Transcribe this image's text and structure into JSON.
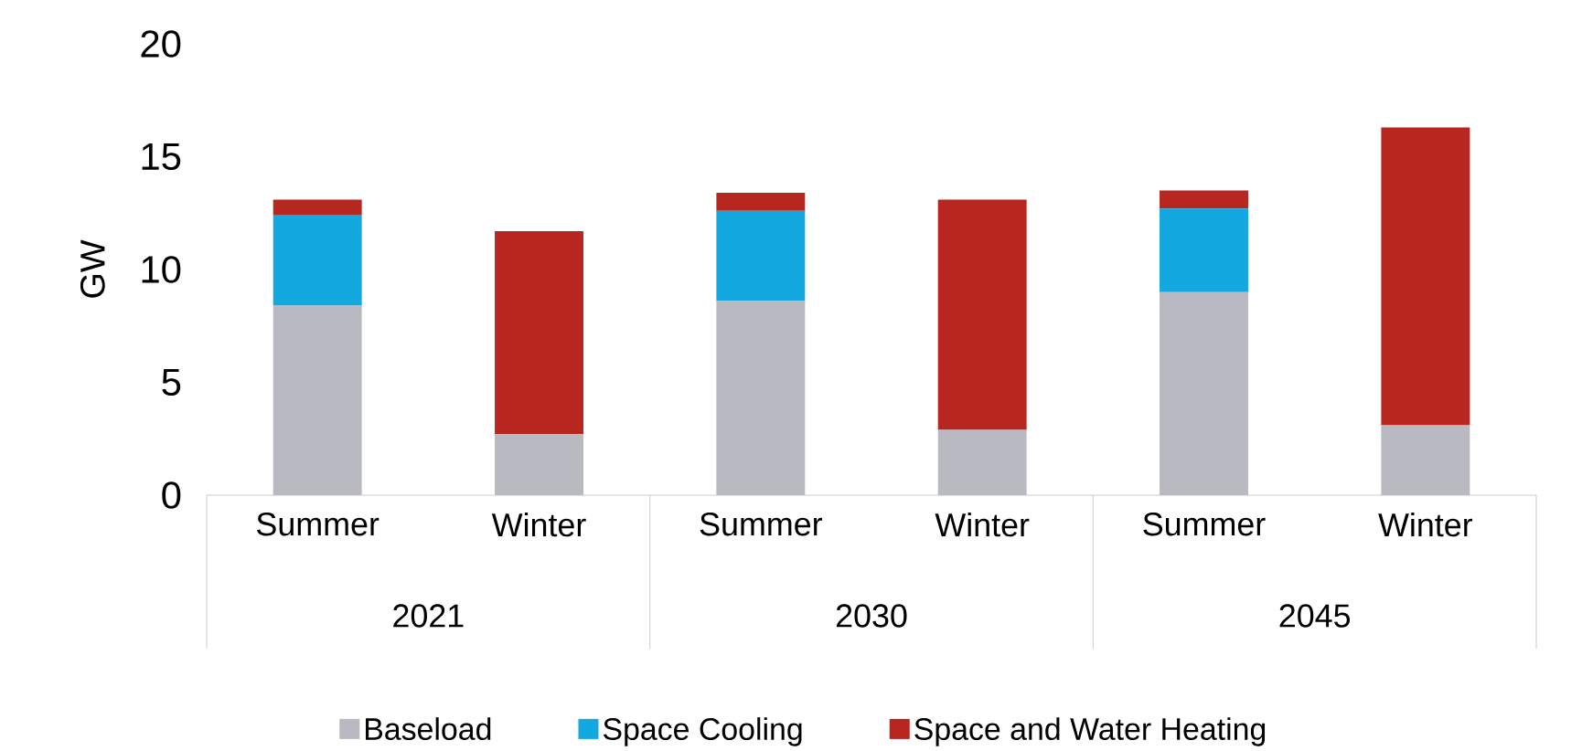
{
  "chart_data": {
    "type": "bar",
    "stacked": true,
    "ylabel": "GW",
    "categories": [
      "Summer",
      "Winter",
      "Summer",
      "Winter",
      "Summer",
      "Winter"
    ],
    "annotations": [
      "2021",
      "2030",
      "2045"
    ],
    "series": [
      {
        "name": "Baseload",
        "color": "#b9b9c1",
        "values": [
          8.4,
          2.7,
          8.6,
          2.9,
          9.0,
          3.1
        ]
      },
      {
        "name": "Space Cooling",
        "color": "#13a8e0",
        "values": [
          4.0,
          0,
          4.0,
          0,
          3.7,
          0
        ]
      },
      {
        "name": "Space and Water Heating",
        "color": "#b8271f",
        "values": [
          0.7,
          9.0,
          0.8,
          10.2,
          0.8,
          13.2
        ]
      }
    ],
    "ylim": [
      0,
      20
    ],
    "yticks": [
      0,
      5,
      10,
      15,
      20
    ],
    "legend": "bottom"
  }
}
